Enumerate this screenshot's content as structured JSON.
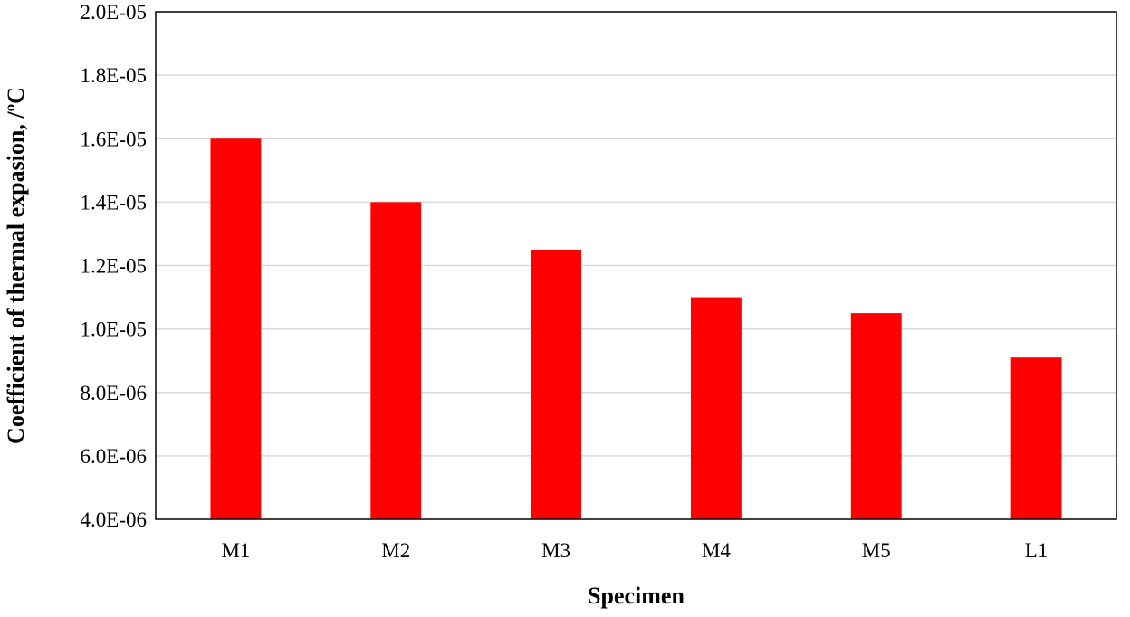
{
  "chart_data": {
    "type": "bar",
    "title": "",
    "xlabel": "Specimen",
    "ylabel": "Coefficient of thermal expasion, /ºC",
    "categories": [
      "M1",
      "M2",
      "M3",
      "M4",
      "M5",
      "L1"
    ],
    "values": [
      1.6e-05,
      1.4e-05,
      1.25e-05,
      1.1e-05,
      1.05e-05,
      9.1e-06
    ],
    "ylim": [
      4e-06,
      2e-05
    ],
    "yticks": [
      4e-06,
      6e-06,
      8e-06,
      1e-05,
      1.2e-05,
      1.4e-05,
      1.6e-05,
      1.8e-05,
      2e-05
    ],
    "ytick_labels": [
      "4.0E-06",
      "6.0E-06",
      "8.0E-06",
      "1.0E-05",
      "1.2E-05",
      "1.4E-05",
      "1.6E-05",
      "1.8E-05",
      "2.0E-05"
    ],
    "grid": true,
    "legend": "none",
    "bar_color": "#ff0000",
    "grid_color": "#d9d9d9",
    "frame_color": "#000000"
  }
}
